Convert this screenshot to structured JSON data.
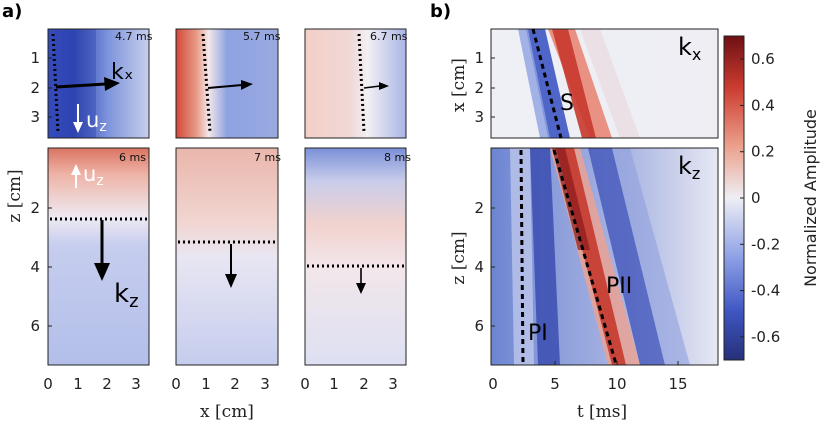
{
  "figure": {
    "panel_a_letter": "a)",
    "panel_b_letter": "b)"
  },
  "panel_a": {
    "x_label": "x [cm]",
    "z_label": "z [cm]",
    "x_ticks": [
      "0",
      "1",
      "2",
      "3"
    ],
    "top_y_ticks": [
      "1",
      "2",
      "3"
    ],
    "bottom_y_ticks": [
      "2",
      "4",
      "6"
    ],
    "top_snapshots": [
      {
        "time": "4.7 ms",
        "front_x_cm": 0.3
      },
      {
        "time": "5.7 ms",
        "front_x_cm": 1.0
      },
      {
        "time": "6.7 ms",
        "front_x_cm": 2.0
      }
    ],
    "bottom_snapshots": [
      {
        "time": "6 ms",
        "front_z_cm": 2.4
      },
      {
        "time": "7 ms",
        "front_z_cm": 3.1
      },
      {
        "time": "8 ms",
        "front_z_cm": 4.0
      }
    ],
    "labels": {
      "kx": "kₓ",
      "uz": "u",
      "uz_sub": "z",
      "kz": "k",
      "kz_sub": "z"
    }
  },
  "panel_b": {
    "t_label": "t [ms]",
    "x_label": "x [cm]",
    "z_label": "z [cm]",
    "t_ticks": [
      "0",
      "5",
      "10",
      "15"
    ],
    "top_y_ticks": [
      "1",
      "2",
      "3"
    ],
    "bottom_y_ticks": [
      "2",
      "4",
      "6"
    ],
    "labels": {
      "kx": "k",
      "kx_sub": "x",
      "kz": "k",
      "kz_sub": "z",
      "S": "S",
      "PI": "PI",
      "PII": "PII"
    }
  },
  "colorbar": {
    "label": "Normalized Amplitude",
    "ticks": [
      "0.6",
      "0.4",
      "0.2",
      "0",
      "-0.2",
      "-0.4",
      "-0.6"
    ]
  },
  "chart_data": [
    {
      "type": "heatmap",
      "title": "",
      "xlabel": "x [cm]",
      "ylabel": "z [cm]",
      "xlim": [
        0,
        4
      ],
      "snapshots_top_ms": [
        4.7,
        5.7,
        6.7
      ],
      "snapshots_bottom_ms": [
        6,
        7,
        8
      ],
      "top_ylim": [
        0,
        4
      ],
      "bottom_ylim": [
        0,
        7.5
      ]
    },
    {
      "type": "heatmap",
      "title": "",
      "xlabel": "t [ms]",
      "ylabel_top": "x [cm]",
      "ylabel_bottom": "z [cm]",
      "xlim": [
        0,
        18
      ],
      "top_ylim": [
        0,
        4
      ],
      "bottom_ylim": [
        0,
        7.5
      ],
      "front_lines": [
        {
          "name": "S",
          "t": [
            3.5,
            5.5
          ],
          "x": [
            0,
            3.8
          ]
        },
        {
          "name": "PI",
          "t": [
            2.5,
            2.5
          ],
          "z": [
            0,
            7.5
          ]
        },
        {
          "name": "PII",
          "t": [
            5.2,
            10.0
          ],
          "z": [
            0,
            7.5
          ]
        }
      ]
    },
    {
      "type": "colorbar",
      "ylabel": "Normalized Amplitude",
      "ylim": [
        -0.7,
        0.7
      ],
      "tick_values": [
        0.6,
        0.4,
        0.2,
        0,
        -0.2,
        -0.4,
        -0.6
      ],
      "colors": [
        "#2b3680",
        "#5a72d8",
        "#e8e8f2",
        "#d85a4a",
        "#7a1518"
      ]
    }
  ]
}
